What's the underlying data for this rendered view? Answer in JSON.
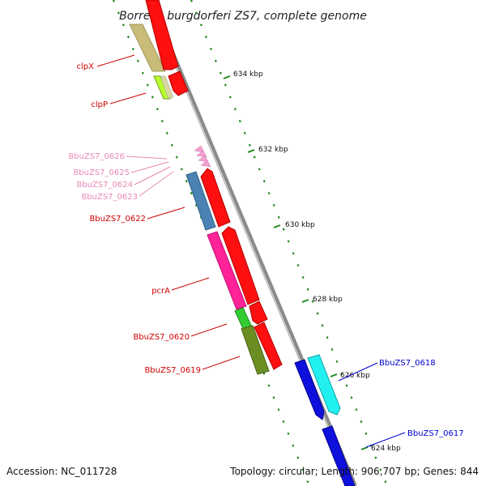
{
  "title": "Borrelia burgdorferi ZS7, complete genome",
  "accession": "Accession: NC_011728",
  "summary": "Topology: circular; Length: 906,707 bp; Genes: 844",
  "colors": {
    "backbone": "#8a8a8a",
    "dots": "#1e8a1e",
    "forward_label": "#cc0000",
    "reverse_label": "#0000cc",
    "pink_label": "#e888b8"
  },
  "scale_ticks": [
    "634 kbp",
    "632 kbp",
    "630 kbp",
    "628 kbp",
    "626 kbp",
    "624 kbp"
  ],
  "gene_labels": [
    {
      "text": "clpX",
      "strand": "forward"
    },
    {
      "text": "clpP",
      "strand": "forward"
    },
    {
      "text": "BbuZS7_0626",
      "strand": "pink"
    },
    {
      "text": "BbuZS7_0625",
      "strand": "pink"
    },
    {
      "text": "BbuZS7_0624",
      "strand": "pink"
    },
    {
      "text": "BbuZS7_0623",
      "strand": "pink"
    },
    {
      "text": "BbuZS7_0622",
      "strand": "forward"
    },
    {
      "text": "pcrA",
      "strand": "forward"
    },
    {
      "text": "BbuZS7_0620",
      "strand": "forward"
    },
    {
      "text": "BbuZS7_0619",
      "strand": "forward"
    },
    {
      "text": "BbuZS7_0618",
      "strand": "reverse"
    },
    {
      "text": "BbuZS7_0617",
      "strand": "reverse"
    }
  ]
}
